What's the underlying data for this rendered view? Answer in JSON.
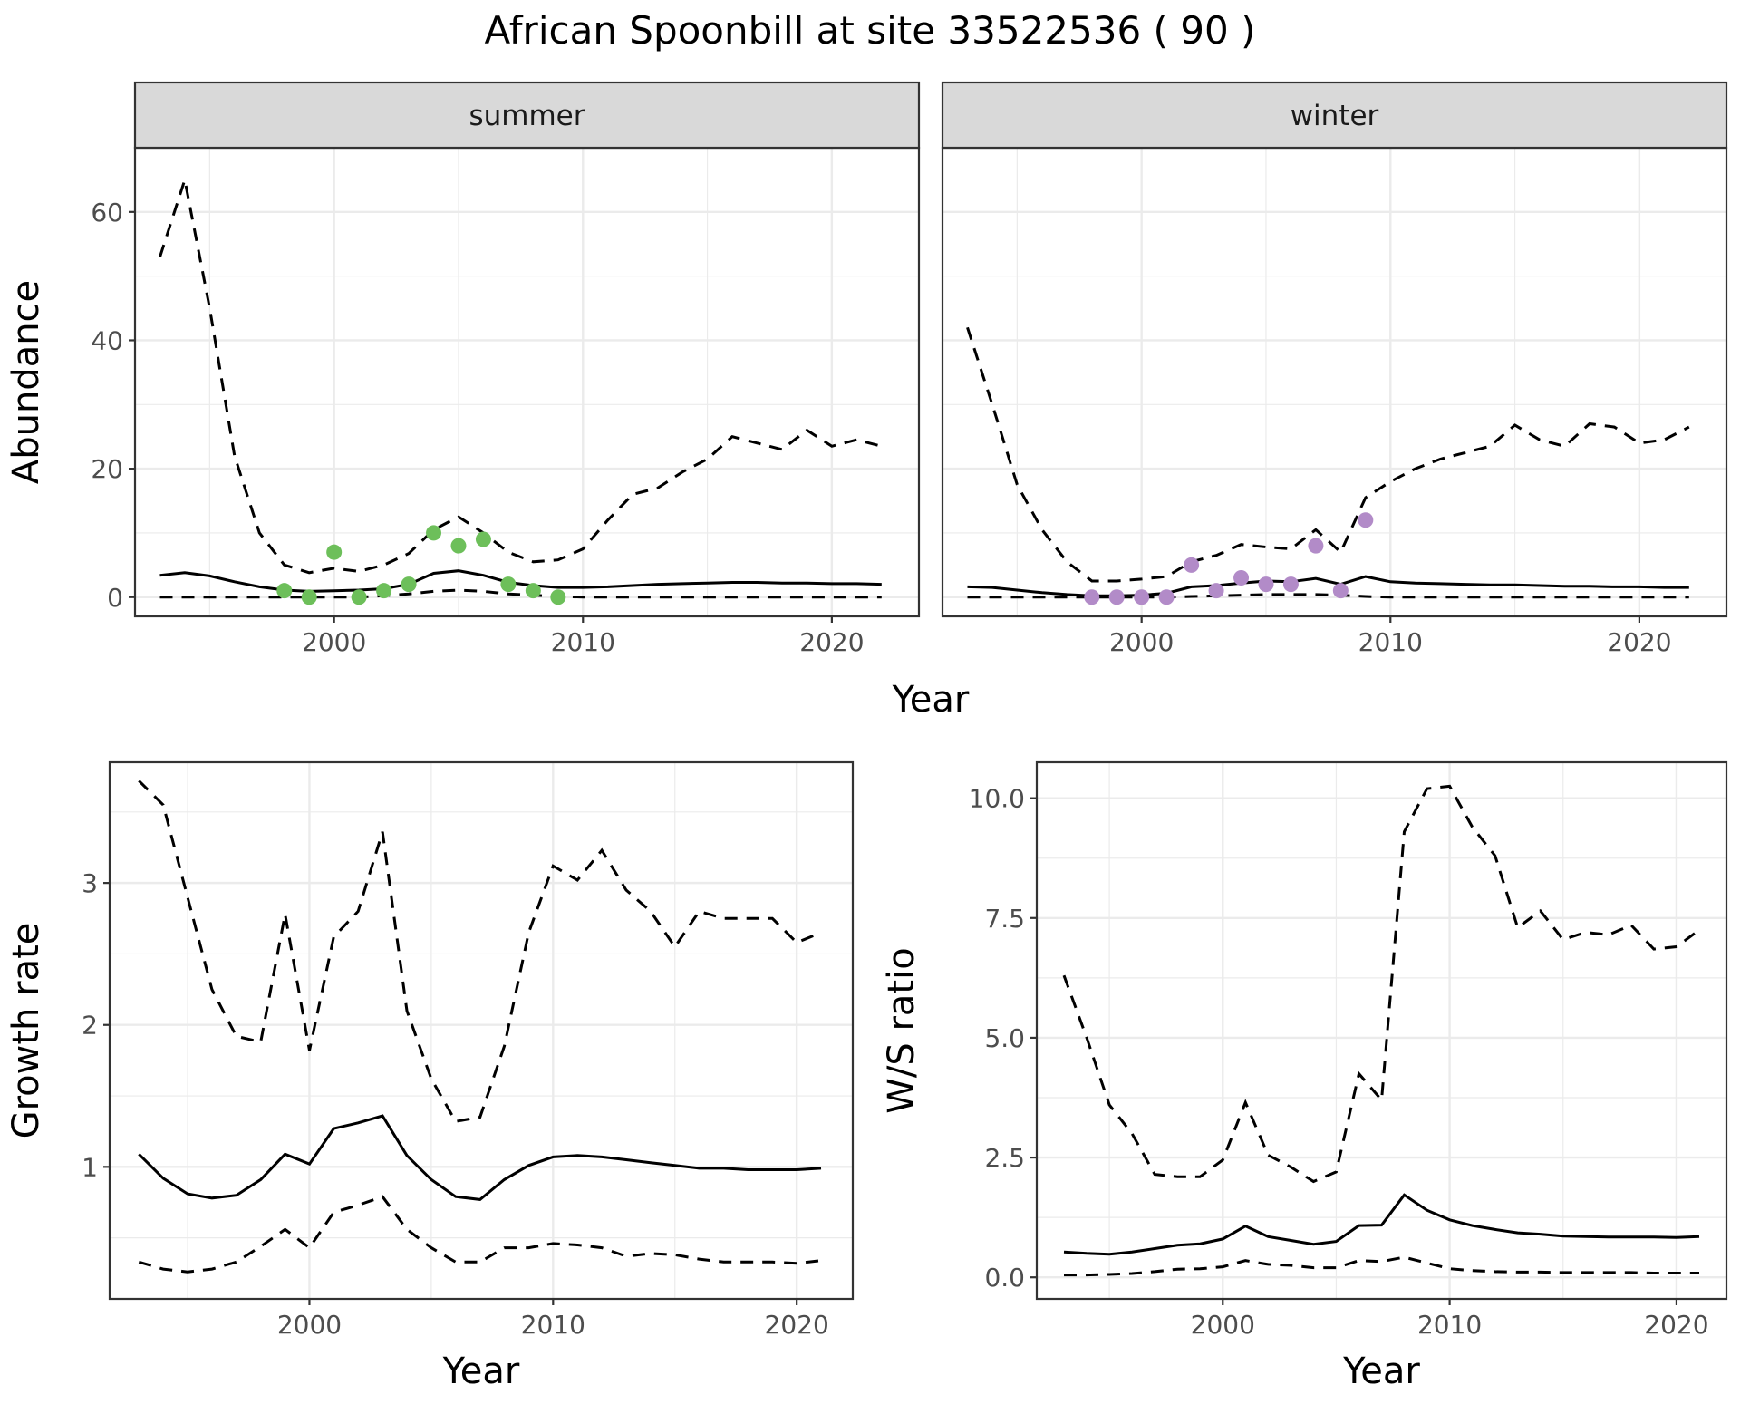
{
  "title": "African Spoonbill at site 33522536 ( 90 )",
  "colors": {
    "summer_points": "#6dbf5a",
    "winter_points": "#b28bc8",
    "lines": "#000000",
    "strip": "#d9d9d9"
  },
  "chart_data": [
    {
      "id": "abundance-summer",
      "type": "line",
      "facet_label": "summer",
      "xlabel": "Year",
      "ylabel": "Abundance",
      "xlim": [
        1992,
        2023.5
      ],
      "ylim": [
        -3,
        70
      ],
      "xticks": [
        2000,
        2010,
        2020
      ],
      "yticks": [
        0,
        20,
        40,
        60
      ],
      "grid": true,
      "series": [
        {
          "role": "estimate",
          "style": "solid",
          "x": [
            1993,
            1994,
            1995,
            1996,
            1997,
            1998,
            1999,
            2000,
            2001,
            2002,
            2003,
            2004,
            2005,
            2006,
            2007,
            2008,
            2009,
            2010,
            2011,
            2012,
            2013,
            2014,
            2015,
            2016,
            2017,
            2018,
            2019,
            2020,
            2021,
            2022
          ],
          "y": [
            3.4,
            3.8,
            3.3,
            2.4,
            1.6,
            1.1,
            0.9,
            1.0,
            1.1,
            1.3,
            2.0,
            3.7,
            4.1,
            3.4,
            2.3,
            1.8,
            1.5,
            1.5,
            1.6,
            1.8,
            2.0,
            2.1,
            2.2,
            2.3,
            2.3,
            2.2,
            2.2,
            2.1,
            2.1,
            2.0
          ]
        },
        {
          "role": "upper",
          "style": "dashed",
          "x": [
            1993,
            1994,
            1995,
            1996,
            1997,
            1998,
            1999,
            2000,
            2001,
            2002,
            2003,
            2004,
            2005,
            2006,
            2007,
            2008,
            2009,
            2010,
            2011,
            2012,
            2013,
            2014,
            2015,
            2016,
            2017,
            2018,
            2019,
            2020,
            2021,
            2022
          ],
          "y": [
            53,
            65,
            45,
            22,
            10,
            5,
            3.8,
            4.5,
            4,
            5,
            6.8,
            10.5,
            12.5,
            10,
            7,
            5.5,
            5.8,
            7.5,
            12,
            16,
            17,
            19.5,
            21.5,
            25,
            24,
            23,
            26,
            23.5,
            24.5,
            23.5
          ]
        },
        {
          "role": "lower",
          "style": "dashed",
          "x": [
            1993,
            1994,
            1995,
            1996,
            1997,
            1998,
            1999,
            2000,
            2001,
            2002,
            2003,
            2004,
            2005,
            2006,
            2007,
            2008,
            2009,
            2010,
            2011,
            2012,
            2013,
            2014,
            2015,
            2016,
            2017,
            2018,
            2019,
            2020,
            2021,
            2022
          ],
          "y": [
            0,
            0,
            0,
            0,
            0,
            0,
            0,
            0,
            0,
            0.2,
            0.5,
            0.9,
            1.1,
            0.9,
            0.5,
            0.3,
            0.1,
            0,
            0,
            0,
            0,
            0,
            0,
            0,
            0,
            0,
            0,
            0,
            0,
            0
          ]
        }
      ],
      "points": {
        "x": [
          1998,
          1999,
          2000,
          2001,
          2002,
          2003,
          2004,
          2005,
          2006,
          2007,
          2008,
          2009
        ],
        "y": [
          1,
          0,
          7,
          0,
          1,
          2,
          10,
          8,
          9,
          2,
          1,
          0
        ]
      }
    },
    {
      "id": "abundance-winter",
      "type": "line",
      "facet_label": "winter",
      "xlabel": "Year",
      "ylabel": "Abundance",
      "xlim": [
        1992,
        2023.5
      ],
      "ylim": [
        -3,
        70
      ],
      "xticks": [
        2000,
        2010,
        2020
      ],
      "yticks": [
        0,
        20,
        40,
        60
      ],
      "grid": true,
      "series": [
        {
          "role": "estimate",
          "style": "solid",
          "x": [
            1993,
            1994,
            1995,
            1996,
            1997,
            1998,
            1999,
            2000,
            2001,
            2002,
            2003,
            2004,
            2005,
            2006,
            2007,
            2008,
            2009,
            2010,
            2011,
            2012,
            2013,
            2014,
            2015,
            2016,
            2017,
            2018,
            2019,
            2020,
            2021,
            2022
          ],
          "y": [
            1.6,
            1.5,
            1.1,
            0.7,
            0.4,
            0.2,
            0.2,
            0.3,
            0.6,
            1.6,
            1.8,
            2.2,
            2.5,
            2.4,
            2.9,
            2.0,
            3.2,
            2.4,
            2.2,
            2.1,
            2.0,
            1.9,
            1.9,
            1.8,
            1.7,
            1.7,
            1.6,
            1.6,
            1.5,
            1.5
          ]
        },
        {
          "role": "upper",
          "style": "dashed",
          "x": [
            1993,
            1994,
            1995,
            1996,
            1997,
            1998,
            1999,
            2000,
            2001,
            2002,
            2003,
            2004,
            2005,
            2006,
            2007,
            2008,
            2009,
            2010,
            2011,
            2012,
            2013,
            2014,
            2015,
            2016,
            2017,
            2018,
            2019,
            2020,
            2021,
            2022
          ],
          "y": [
            42,
            30,
            17.5,
            10.5,
            5.5,
            2.5,
            2.5,
            2.8,
            3.2,
            5.5,
            6.5,
            8.2,
            7.8,
            7.5,
            10.5,
            7,
            15.5,
            18,
            20,
            21.5,
            22.5,
            23.5,
            26.8,
            24.5,
            23.5,
            27,
            26.5,
            24,
            24.5,
            26.5
          ]
        },
        {
          "role": "lower",
          "style": "dashed",
          "x": [
            1993,
            1994,
            1995,
            1996,
            1997,
            1998,
            1999,
            2000,
            2001,
            2002,
            2003,
            2004,
            2005,
            2006,
            2007,
            2008,
            2009,
            2010,
            2011,
            2012,
            2013,
            2014,
            2015,
            2016,
            2017,
            2018,
            2019,
            2020,
            2021,
            2022
          ],
          "y": [
            0,
            0,
            0,
            0,
            0,
            0,
            0,
            0,
            0,
            0.1,
            0.2,
            0.3,
            0.4,
            0.4,
            0.4,
            0.3,
            0.1,
            0,
            0,
            0,
            0,
            0,
            0,
            0,
            0,
            0,
            0,
            0,
            0,
            0
          ]
        }
      ],
      "points": {
        "x": [
          1998,
          1999,
          2000,
          2001,
          2002,
          2003,
          2004,
          2005,
          2006,
          2007,
          2008,
          2009
        ],
        "y": [
          0,
          0,
          0,
          0,
          5,
          1,
          3,
          2,
          2,
          8,
          1,
          12
        ]
      }
    },
    {
      "id": "growth-rate",
      "type": "line",
      "xlabel": "Year",
      "ylabel": "Growth rate",
      "xlim": [
        1991.8,
        2022.3
      ],
      "ylim": [
        0.07,
        3.85
      ],
      "xticks": [
        2000,
        2010,
        2020
      ],
      "yticks": [
        1,
        2,
        3
      ],
      "grid": true,
      "series": [
        {
          "role": "estimate",
          "style": "solid",
          "x": [
            1993,
            1994,
            1995,
            1996,
            1997,
            1998,
            1999,
            2000,
            2001,
            2002,
            2003,
            2004,
            2005,
            2006,
            2007,
            2008,
            2009,
            2010,
            2011,
            2012,
            2013,
            2014,
            2015,
            2016,
            2017,
            2018,
            2019,
            2020,
            2021
          ],
          "y": [
            1.09,
            0.92,
            0.81,
            0.78,
            0.8,
            0.91,
            1.09,
            1.02,
            1.27,
            1.31,
            1.36,
            1.08,
            0.91,
            0.79,
            0.77,
            0.91,
            1.01,
            1.07,
            1.08,
            1.07,
            1.05,
            1.03,
            1.01,
            0.99,
            0.99,
            0.98,
            0.98,
            0.98,
            0.99
          ]
        },
        {
          "role": "upper",
          "style": "dashed",
          "x": [
            1993,
            1994,
            1995,
            1996,
            1997,
            1998,
            1999,
            2000,
            2001,
            2002,
            2003,
            2004,
            2005,
            2006,
            2007,
            2008,
            2009,
            2010,
            2011,
            2012,
            2013,
            2014,
            2015,
            2016,
            2017,
            2018,
            2019,
            2020,
            2021
          ],
          "y": [
            3.72,
            3.55,
            2.9,
            2.25,
            1.92,
            1.88,
            2.78,
            1.82,
            2.62,
            2.8,
            3.36,
            2.1,
            1.62,
            1.32,
            1.35,
            1.85,
            2.65,
            3.12,
            3.02,
            3.23,
            2.95,
            2.8,
            2.55,
            2.8,
            2.75,
            2.75,
            2.75,
            2.58,
            2.65
          ]
        },
        {
          "role": "lower",
          "style": "dashed",
          "x": [
            1993,
            1994,
            1995,
            1996,
            1997,
            1998,
            1999,
            2000,
            2001,
            2002,
            2003,
            2004,
            2005,
            2006,
            2007,
            2008,
            2009,
            2010,
            2011,
            2012,
            2013,
            2014,
            2015,
            2016,
            2017,
            2018,
            2019,
            2020,
            2021
          ],
          "y": [
            0.33,
            0.28,
            0.26,
            0.28,
            0.33,
            0.44,
            0.56,
            0.43,
            0.68,
            0.73,
            0.79,
            0.56,
            0.43,
            0.33,
            0.33,
            0.43,
            0.43,
            0.46,
            0.45,
            0.43,
            0.37,
            0.39,
            0.38,
            0.35,
            0.33,
            0.33,
            0.33,
            0.32,
            0.34
          ]
        }
      ]
    },
    {
      "id": "ws-ratio",
      "type": "line",
      "xlabel": "Year",
      "ylabel": "W/S ratio",
      "xlim": [
        1991.8,
        2022.2
      ],
      "ylim": [
        -0.45,
        10.75
      ],
      "xticks": [
        2000,
        2010,
        2020
      ],
      "yticks": [
        0.0,
        2.5,
        5.0,
        7.5,
        10.0
      ],
      "ytick_labels": [
        "0.0",
        "2.5",
        "5.0",
        "7.5",
        "10.0"
      ],
      "grid": true,
      "series": [
        {
          "role": "estimate",
          "style": "solid",
          "x": [
            1993,
            1994,
            1995,
            1996,
            1997,
            1998,
            1999,
            2000,
            2001,
            2002,
            2003,
            2004,
            2005,
            2006,
            2007,
            2008,
            2009,
            2010,
            2011,
            2012,
            2013,
            2014,
            2015,
            2016,
            2017,
            2018,
            2019,
            2020,
            2021
          ],
          "y": [
            0.53,
            0.5,
            0.48,
            0.53,
            0.6,
            0.67,
            0.7,
            0.8,
            1.07,
            0.85,
            0.77,
            0.69,
            0.75,
            1.08,
            1.09,
            1.72,
            1.4,
            1.2,
            1.08,
            1.0,
            0.93,
            0.9,
            0.86,
            0.85,
            0.84,
            0.84,
            0.84,
            0.83,
            0.85
          ]
        },
        {
          "role": "upper",
          "style": "dashed",
          "x": [
            1993,
            1994,
            1995,
            1996,
            1997,
            1998,
            1999,
            2000,
            2001,
            2002,
            2003,
            2004,
            2005,
            2006,
            2007,
            2008,
            2009,
            2010,
            2011,
            2012,
            2013,
            2014,
            2015,
            2016,
            2017,
            2018,
            2019,
            2020,
            2021
          ],
          "y": [
            6.3,
            5.0,
            3.6,
            3.0,
            2.15,
            2.1,
            2.1,
            2.45,
            3.65,
            2.55,
            2.3,
            2.0,
            2.2,
            4.25,
            3.7,
            9.3,
            10.2,
            10.25,
            9.4,
            8.8,
            7.3,
            7.65,
            7.05,
            7.2,
            7.15,
            7.35,
            6.85,
            6.9,
            7.25
          ]
        },
        {
          "role": "lower",
          "style": "dashed",
          "x": [
            1993,
            1994,
            1995,
            1996,
            1997,
            1998,
            1999,
            2000,
            2001,
            2002,
            2003,
            2004,
            2005,
            2006,
            2007,
            2008,
            2009,
            2010,
            2011,
            2012,
            2013,
            2014,
            2015,
            2016,
            2017,
            2018,
            2019,
            2020,
            2021
          ],
          "y": [
            0.05,
            0.05,
            0.06,
            0.08,
            0.12,
            0.17,
            0.18,
            0.22,
            0.35,
            0.27,
            0.25,
            0.2,
            0.2,
            0.35,
            0.33,
            0.42,
            0.3,
            0.18,
            0.14,
            0.12,
            0.11,
            0.11,
            0.1,
            0.1,
            0.1,
            0.1,
            0.09,
            0.09,
            0.09
          ]
        }
      ]
    }
  ]
}
